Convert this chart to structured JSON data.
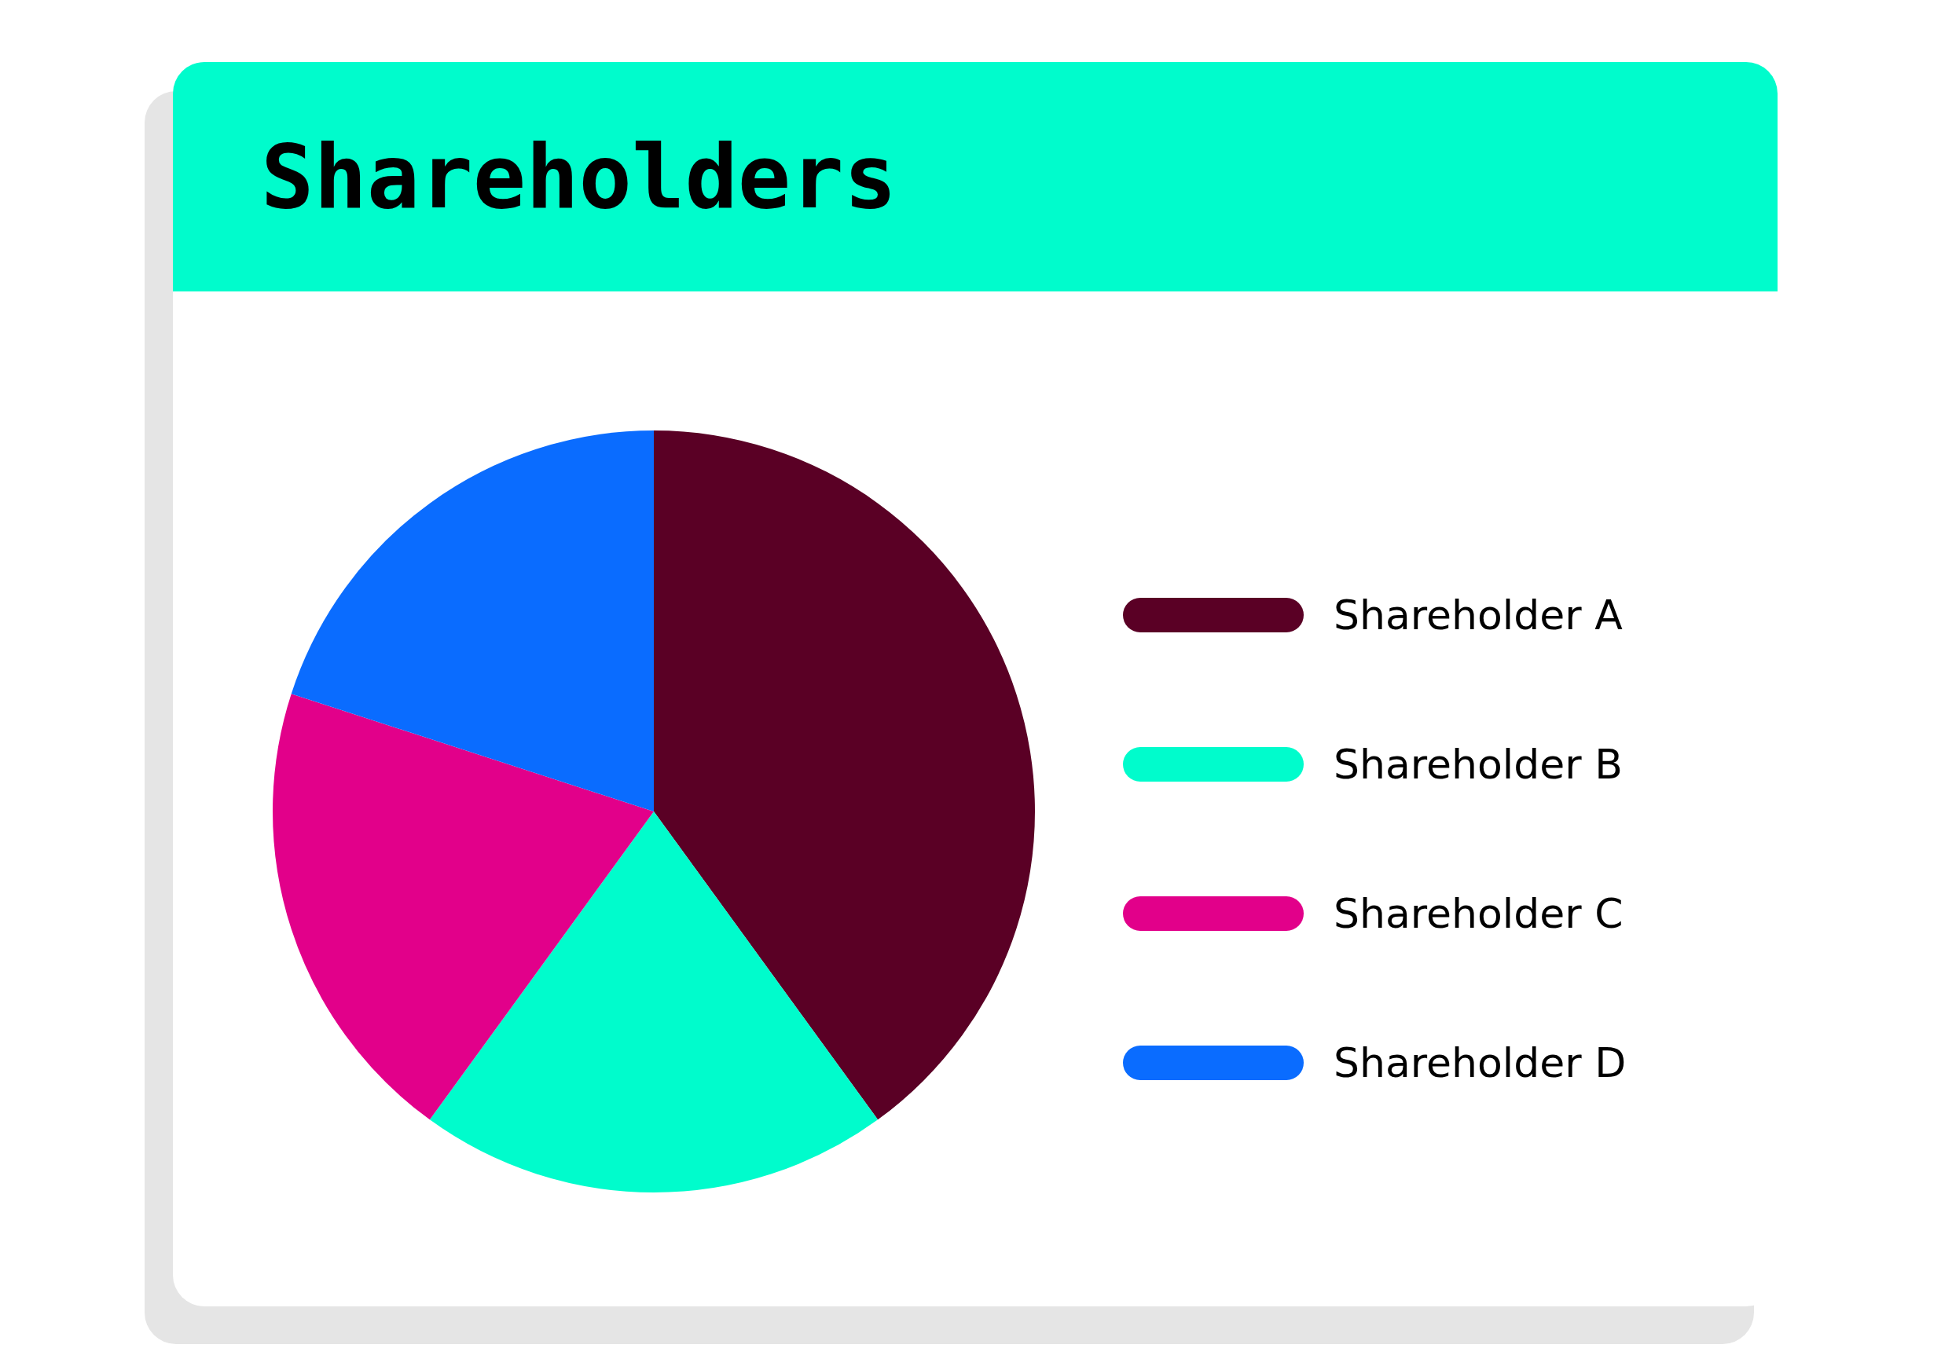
{
  "chart_data": {
    "type": "pie",
    "title": "Shareholders",
    "categories": [
      "Shareholder A",
      "Shareholder B",
      "Shareholder C",
      "Shareholder D"
    ],
    "values": [
      40,
      20,
      20,
      20
    ],
    "colors": [
      "#5a0025",
      "#00fccc",
      "#e2008a",
      "#0a6cff"
    ],
    "legend": "right"
  }
}
